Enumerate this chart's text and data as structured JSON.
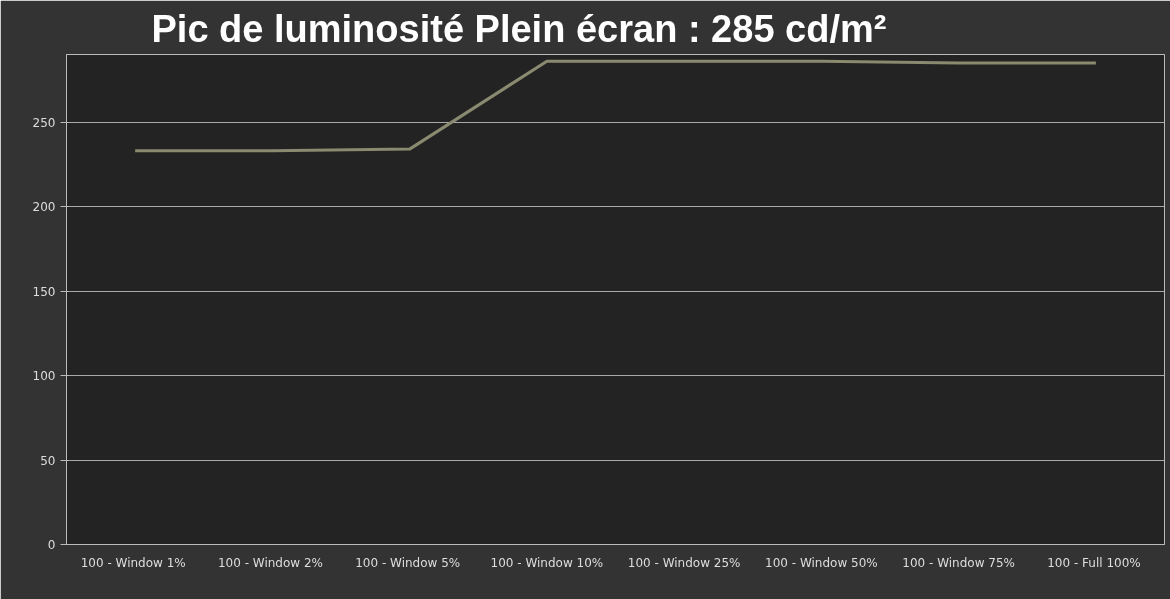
{
  "chart_data": {
    "type": "line",
    "title": "Pic de luminosité Plein écran : 285 cd/m²",
    "categories": [
      "100 - Window  1%",
      "100 - Window  2%",
      "100 - Window  5%",
      "100 - Window 10%",
      "100 - Window 25%",
      "100 - Window 50%",
      "100 - Window 75%",
      "100 - Full  100%"
    ],
    "series": [
      {
        "color": "#8a8a70",
        "values": [
          233,
          233,
          234,
          286,
          286,
          286,
          285,
          285
        ]
      }
    ],
    "ylim": [
      0,
      290
    ],
    "yticks": [
      0,
      50,
      100,
      150,
      200,
      250
    ],
    "grid": "y",
    "marker": "none",
    "line_style": "solid"
  }
}
